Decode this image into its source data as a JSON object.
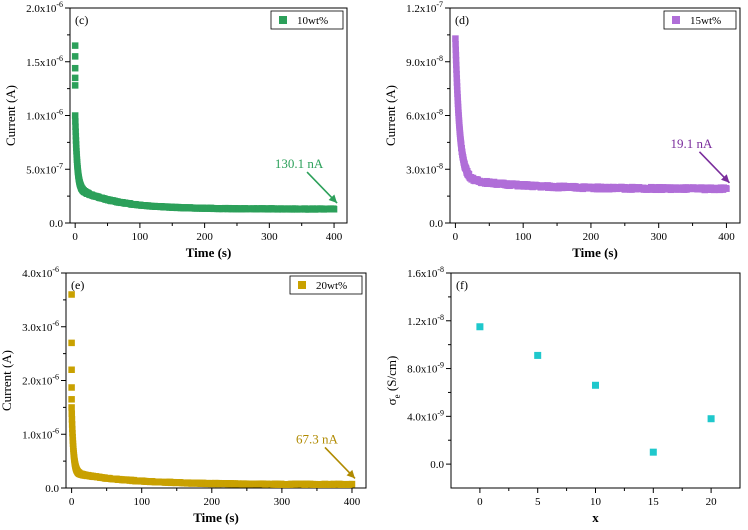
{
  "chart_data": [
    {
      "type": "scatter",
      "panel_label": "(c)",
      "legend": "10wt%",
      "color": "#2ca05a",
      "xlabel": "Time (s)",
      "ylabel": "Current (A)",
      "xlim": [
        -8,
        420
      ],
      "ylim": [
        0,
        2e-06
      ],
      "xticks": [
        0,
        100,
        200,
        300,
        400
      ],
      "xtick_labels": [
        "0",
        "100",
        "200",
        "300",
        "400"
      ],
      "yticks": [
        0,
        5e-07,
        1e-06,
        1.5e-06,
        2e-06
      ],
      "ytick_labels": [
        {
          "base": "0.0",
          "exp": ""
        },
        {
          "base": "5.0x10",
          "exp": "-7"
        },
        {
          "base": "1.0x10",
          "exp": "-6"
        },
        {
          "base": "1.5x10",
          "exp": "-6"
        },
        {
          "base": "2.0x10",
          "exp": "-6"
        }
      ],
      "decay": {
        "t_end": 400,
        "i0": 1.65e-06,
        "i_start": 1e-06,
        "i_end": 1.301e-07,
        "tau_fast": 3,
        "tau_slow": 60,
        "slow_amp": 2e-07
      },
      "burst": [
        1.65e-06,
        1.55e-06,
        1.44e-06,
        1.35e-06,
        1.28e-06
      ],
      "annotation": {
        "text": "130.1 nA",
        "value": 1.301e-07,
        "t": 400
      }
    },
    {
      "type": "scatter",
      "panel_label": "(d)",
      "legend": "15wt%",
      "color": "#b06ed8",
      "annotation_color": "#7a2d9c",
      "xlabel": "Time (s)",
      "ylabel": "Current (A)",
      "xlim": [
        -8,
        420
      ],
      "ylim": [
        0,
        1.2e-07
      ],
      "xticks": [
        0,
        100,
        200,
        300,
        400
      ],
      "xtick_labels": [
        "0",
        "100",
        "200",
        "300",
        "400"
      ],
      "yticks": [
        0,
        3e-08,
        6e-08,
        9e-08,
        1.2e-07
      ],
      "ytick_labels": [
        {
          "base": "0.0",
          "exp": ""
        },
        {
          "base": "3.0x10",
          "exp": "-8"
        },
        {
          "base": "6.0x10",
          "exp": "-8"
        },
        {
          "base": "9.0x10",
          "exp": "-8"
        },
        {
          "base": "1.2x10",
          "exp": "-7"
        }
      ],
      "decay": {
        "t_end": 400,
        "i0": 1.03e-07,
        "i_start": 1.03e-07,
        "i_end": 1.91e-08,
        "tau_fast": 6,
        "tau_slow": 90,
        "slow_amp": 6e-09
      },
      "burst": [],
      "annotation": {
        "text": "19.1 nA",
        "value": 1.91e-08,
        "t": 400
      }
    },
    {
      "type": "scatter",
      "panel_label": "(e)",
      "legend": "20wt%",
      "color": "#c9a100",
      "annotation_color": "#b08a00",
      "xlabel": "Time (s)",
      "ylabel": "Current (A)",
      "xlim": [
        -8,
        420
      ],
      "ylim": [
        0,
        4e-06
      ],
      "xticks": [
        0,
        100,
        200,
        300,
        400
      ],
      "xtick_labels": [
        "0",
        "100",
        "200",
        "300",
        "400"
      ],
      "yticks": [
        0,
        1e-06,
        2e-06,
        3e-06,
        4e-06
      ],
      "ytick_labels": [
        {
          "base": "0.0",
          "exp": ""
        },
        {
          "base": "1.0x10",
          "exp": "-6"
        },
        {
          "base": "2.0x10",
          "exp": "-6"
        },
        {
          "base": "3.0x10",
          "exp": "-6"
        },
        {
          "base": "4.0x10",
          "exp": "-6"
        }
      ],
      "decay": {
        "t_end": 400,
        "i0": 1.5e-06,
        "i_start": 1.5e-06,
        "i_end": 6.73e-08,
        "tau_fast": 2.5,
        "tau_slow": 80,
        "slow_amp": 2.2e-07
      },
      "burst": [
        3.6e-06,
        2.7e-06,
        2.2e-06,
        1.87e-06,
        1.65e-06
      ],
      "annotation": {
        "text": "67.3 nA",
        "value": 6.73e-08,
        "t": 400
      }
    },
    {
      "type": "scatter",
      "panel_label": "(f)",
      "color": "#1fc8cc",
      "xlabel": "x",
      "ylabel": "σe (S/cm)",
      "ylabel_main": "σ",
      "ylabel_sub": "e",
      "ylabel_rest": " (S/cm)",
      "xlim": [
        -2.5,
        22.5
      ],
      "ylim": [
        -2e-09,
        1.6e-08
      ],
      "xticks": [
        0,
        5,
        10,
        15,
        20
      ],
      "xtick_labels": [
        "0",
        "5",
        "10",
        "15",
        "20"
      ],
      "yticks": [
        0,
        4e-09,
        8e-09,
        1.2e-08,
        1.6e-08
      ],
      "ytick_labels": [
        {
          "base": "0.0",
          "exp": ""
        },
        {
          "base": "4.0x10",
          "exp": "-9"
        },
        {
          "base": "8.0x10",
          "exp": "-9"
        },
        {
          "base": "1.2x10",
          "exp": "-8"
        },
        {
          "base": "1.6x10",
          "exp": "-8"
        }
      ],
      "x": [
        0,
        5,
        10,
        15,
        20
      ],
      "y": [
        1.15e-08,
        9.1e-09,
        6.6e-09,
        1e-09,
        3.8e-09
      ]
    }
  ]
}
